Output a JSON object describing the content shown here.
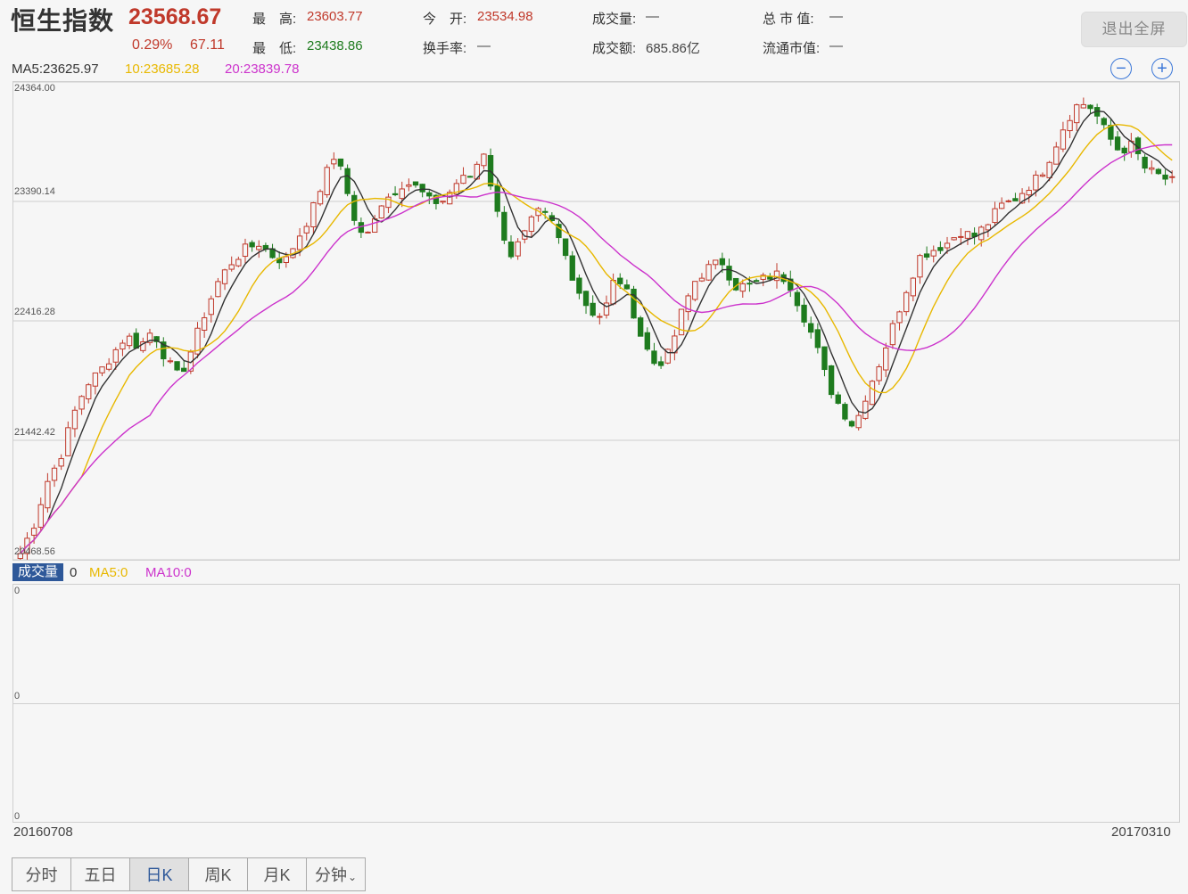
{
  "header": {
    "title": "恒生指数",
    "price": "23568.67",
    "change_pct": "0.29%",
    "change_abs": "67.11",
    "stats": [
      {
        "label": "最　高:",
        "value": "23603.77",
        "color": "#c0392b"
      },
      {
        "label": "最　低:",
        "value": "23438.86",
        "color": "#1e7b1e"
      },
      {
        "label": "今　开:",
        "value": "23534.98",
        "color": "#c0392b"
      },
      {
        "label": "换手率:",
        "value": "—",
        "color": "#444"
      },
      {
        "label": "成交量:",
        "value": "—",
        "color": "#444"
      },
      {
        "label": "成交额:",
        "value": "685.86亿",
        "color": "#444"
      },
      {
        "label": "总 市 值:",
        "value": "—",
        "color": "#444"
      },
      {
        "label": "流通市值:",
        "value": "—",
        "color": "#444"
      }
    ],
    "exit_label": "退出全屏",
    "zoom_out": "−",
    "zoom_in": "+"
  },
  "ma_legend": {
    "ma5": "MA5:23625.97",
    "ma10": "10:23685.28",
    "ma20": "20:23839.78"
  },
  "colors": {
    "up": "#c0392b",
    "down": "#1e7b1e",
    "ma5": "#333333",
    "ma10": "#e8b800",
    "ma20": "#cc33cc",
    "accent": "#2e5899"
  },
  "price_axis": [
    "24364.00",
    "23390.14",
    "22416.28",
    "21442.42",
    "20468.56"
  ],
  "volume": {
    "tag": "成交量",
    "value": "0",
    "ma5": "MA5:0",
    "ma10": "MA10:0",
    "axis": [
      "0",
      "0",
      "0"
    ]
  },
  "dates": {
    "start": "20160708",
    "end": "20170310"
  },
  "tabs": [
    {
      "label": "分时",
      "active": false
    },
    {
      "label": "五日",
      "active": false
    },
    {
      "label": "日K",
      "active": true
    },
    {
      "label": "周K",
      "active": false
    },
    {
      "label": "月K",
      "active": false
    },
    {
      "label": "分钟",
      "active": false
    }
  ],
  "chart_data": {
    "type": "candlestick",
    "y_axis_ticks": [
      24364.0,
      23390.14,
      22416.28,
      21442.42,
      20468.56
    ],
    "ylim": [
      20468.56,
      24364.0
    ],
    "x_range": [
      "20160708",
      "20170310"
    ],
    "close_approx": [
      20520,
      20750,
      21100,
      21300,
      21650,
      21900,
      22000,
      22150,
      22300,
      22200,
      22350,
      22100,
      21950,
      22200,
      22500,
      22750,
      22900,
      23000,
      23050,
      22950,
      22900,
      23100,
      23300,
      23600,
      23800,
      23300,
      23050,
      23350,
      23450,
      23550,
      23500,
      23380,
      23400,
      23550,
      23600,
      23800,
      23300,
      22950,
      23100,
      23300,
      23250,
      23000,
      22700,
      22500,
      22450,
      22800,
      22600,
      22250,
      22050,
      22150,
      22500,
      22750,
      22850,
      22900,
      22700,
      22700,
      22750,
      22800,
      22750,
      22500,
      22250,
      21900,
      21700,
      21550,
      21850,
      22100,
      22400,
      22700,
      22950,
      23000,
      23050,
      23150,
      23100,
      23200,
      23350,
      23400,
      23500,
      23600,
      23800,
      24050,
      24200,
      24150,
      23950,
      23800,
      23850,
      23650,
      23600,
      23550
    ]
  }
}
